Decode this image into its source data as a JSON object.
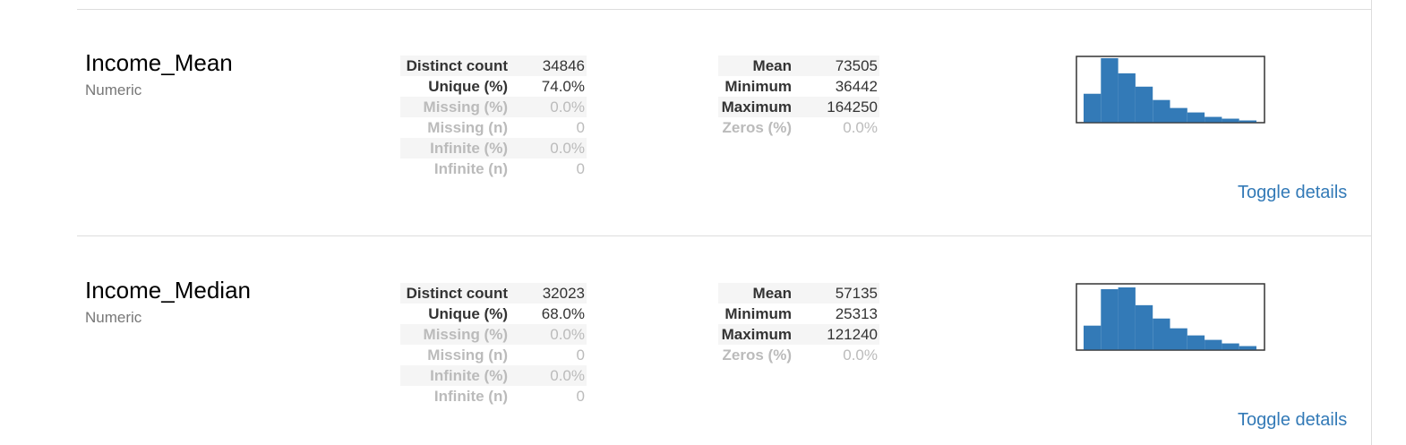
{
  "variables": [
    {
      "name": "Income_Mean",
      "type": "Numeric",
      "left_stats": [
        {
          "label": "Distinct count",
          "value": "34846",
          "dim": false
        },
        {
          "label": "Unique (%)",
          "value": "74.0%",
          "dim": false
        },
        {
          "label": "Missing (%)",
          "value": "0.0%",
          "dim": true
        },
        {
          "label": "Missing (n)",
          "value": "0",
          "dim": true
        },
        {
          "label": "Infinite (%)",
          "value": "0.0%",
          "dim": true
        },
        {
          "label": "Infinite (n)",
          "value": "0",
          "dim": true
        }
      ],
      "right_stats": [
        {
          "label": "Mean",
          "value": "73505",
          "dim": false
        },
        {
          "label": "Minimum",
          "value": "36442",
          "dim": false
        },
        {
          "label": "Maximum",
          "value": "164250",
          "dim": false
        },
        {
          "label": "Zeros (%)",
          "value": "0.0%",
          "dim": true
        }
      ],
      "histogram": [
        32,
        72,
        55,
        40,
        25,
        16,
        11,
        6,
        4,
        2
      ],
      "toggle_label": "Toggle details"
    },
    {
      "name": "Income_Median",
      "type": "Numeric",
      "left_stats": [
        {
          "label": "Distinct count",
          "value": "32023",
          "dim": false
        },
        {
          "label": "Unique (%)",
          "value": "68.0%",
          "dim": false
        },
        {
          "label": "Missing (%)",
          "value": "0.0%",
          "dim": true
        },
        {
          "label": "Missing (n)",
          "value": "0",
          "dim": true
        },
        {
          "label": "Infinite (%)",
          "value": "0.0%",
          "dim": true
        },
        {
          "label": "Infinite (n)",
          "value": "0",
          "dim": true
        }
      ],
      "right_stats": [
        {
          "label": "Mean",
          "value": "57135",
          "dim": false
        },
        {
          "label": "Minimum",
          "value": "25313",
          "dim": false
        },
        {
          "label": "Maximum",
          "value": "121240",
          "dim": false
        },
        {
          "label": "Zeros (%)",
          "value": "0.0%",
          "dim": true
        }
      ],
      "histogram": [
        27,
        68,
        70,
        50,
        35,
        24,
        16,
        11,
        7,
        4
      ],
      "toggle_label": "Toggle details"
    }
  ],
  "colors": {
    "bar": "#337ab7",
    "link": "#337ab7",
    "divider": "#dddddd"
  }
}
